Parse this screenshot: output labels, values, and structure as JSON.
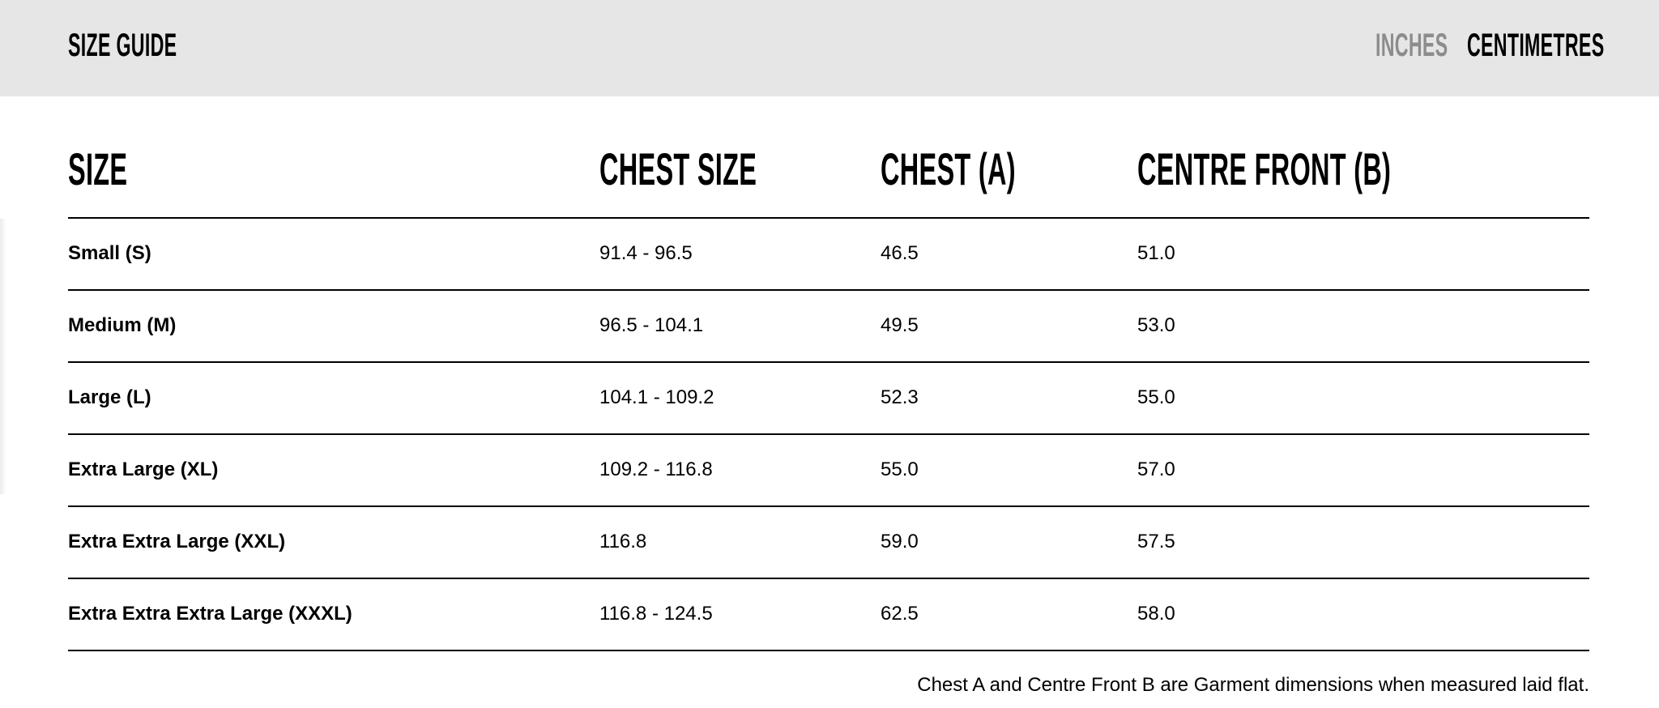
{
  "header": {
    "title": "SIZE GUIDE",
    "units": [
      {
        "label": "INCHES",
        "active": false
      },
      {
        "label": "CENTIMETRES",
        "active": true
      }
    ]
  },
  "table": {
    "columns": [
      "SIZE",
      "CHEST SIZE",
      "CHEST (A)",
      "CENTRE FRONT (B)"
    ],
    "rows": [
      [
        "Small (S)",
        "91.4 - 96.5",
        "46.5",
        "51.0"
      ],
      [
        "Medium (M)",
        "96.5 - 104.1",
        "49.5",
        "53.0"
      ],
      [
        "Large (L)",
        "104.1 - 109.2",
        "52.3",
        "55.0"
      ],
      [
        "Extra Large (XL)",
        "109.2 - 116.8",
        "55.0",
        "57.0"
      ],
      [
        "Extra Extra Large (XXL)",
        "116.8",
        "59.0",
        "57.5"
      ],
      [
        "Extra Extra Extra Large (XXXL)",
        "116.8 - 124.5",
        "62.5",
        "58.0"
      ]
    ]
  },
  "footnote": "Chest A and Centre Front B are Garment dimensions when measured laid flat.",
  "colors": {
    "header_bg": "#e6e6e6",
    "inactive_unit": "#8c8c8c",
    "active_unit": "#000000"
  }
}
